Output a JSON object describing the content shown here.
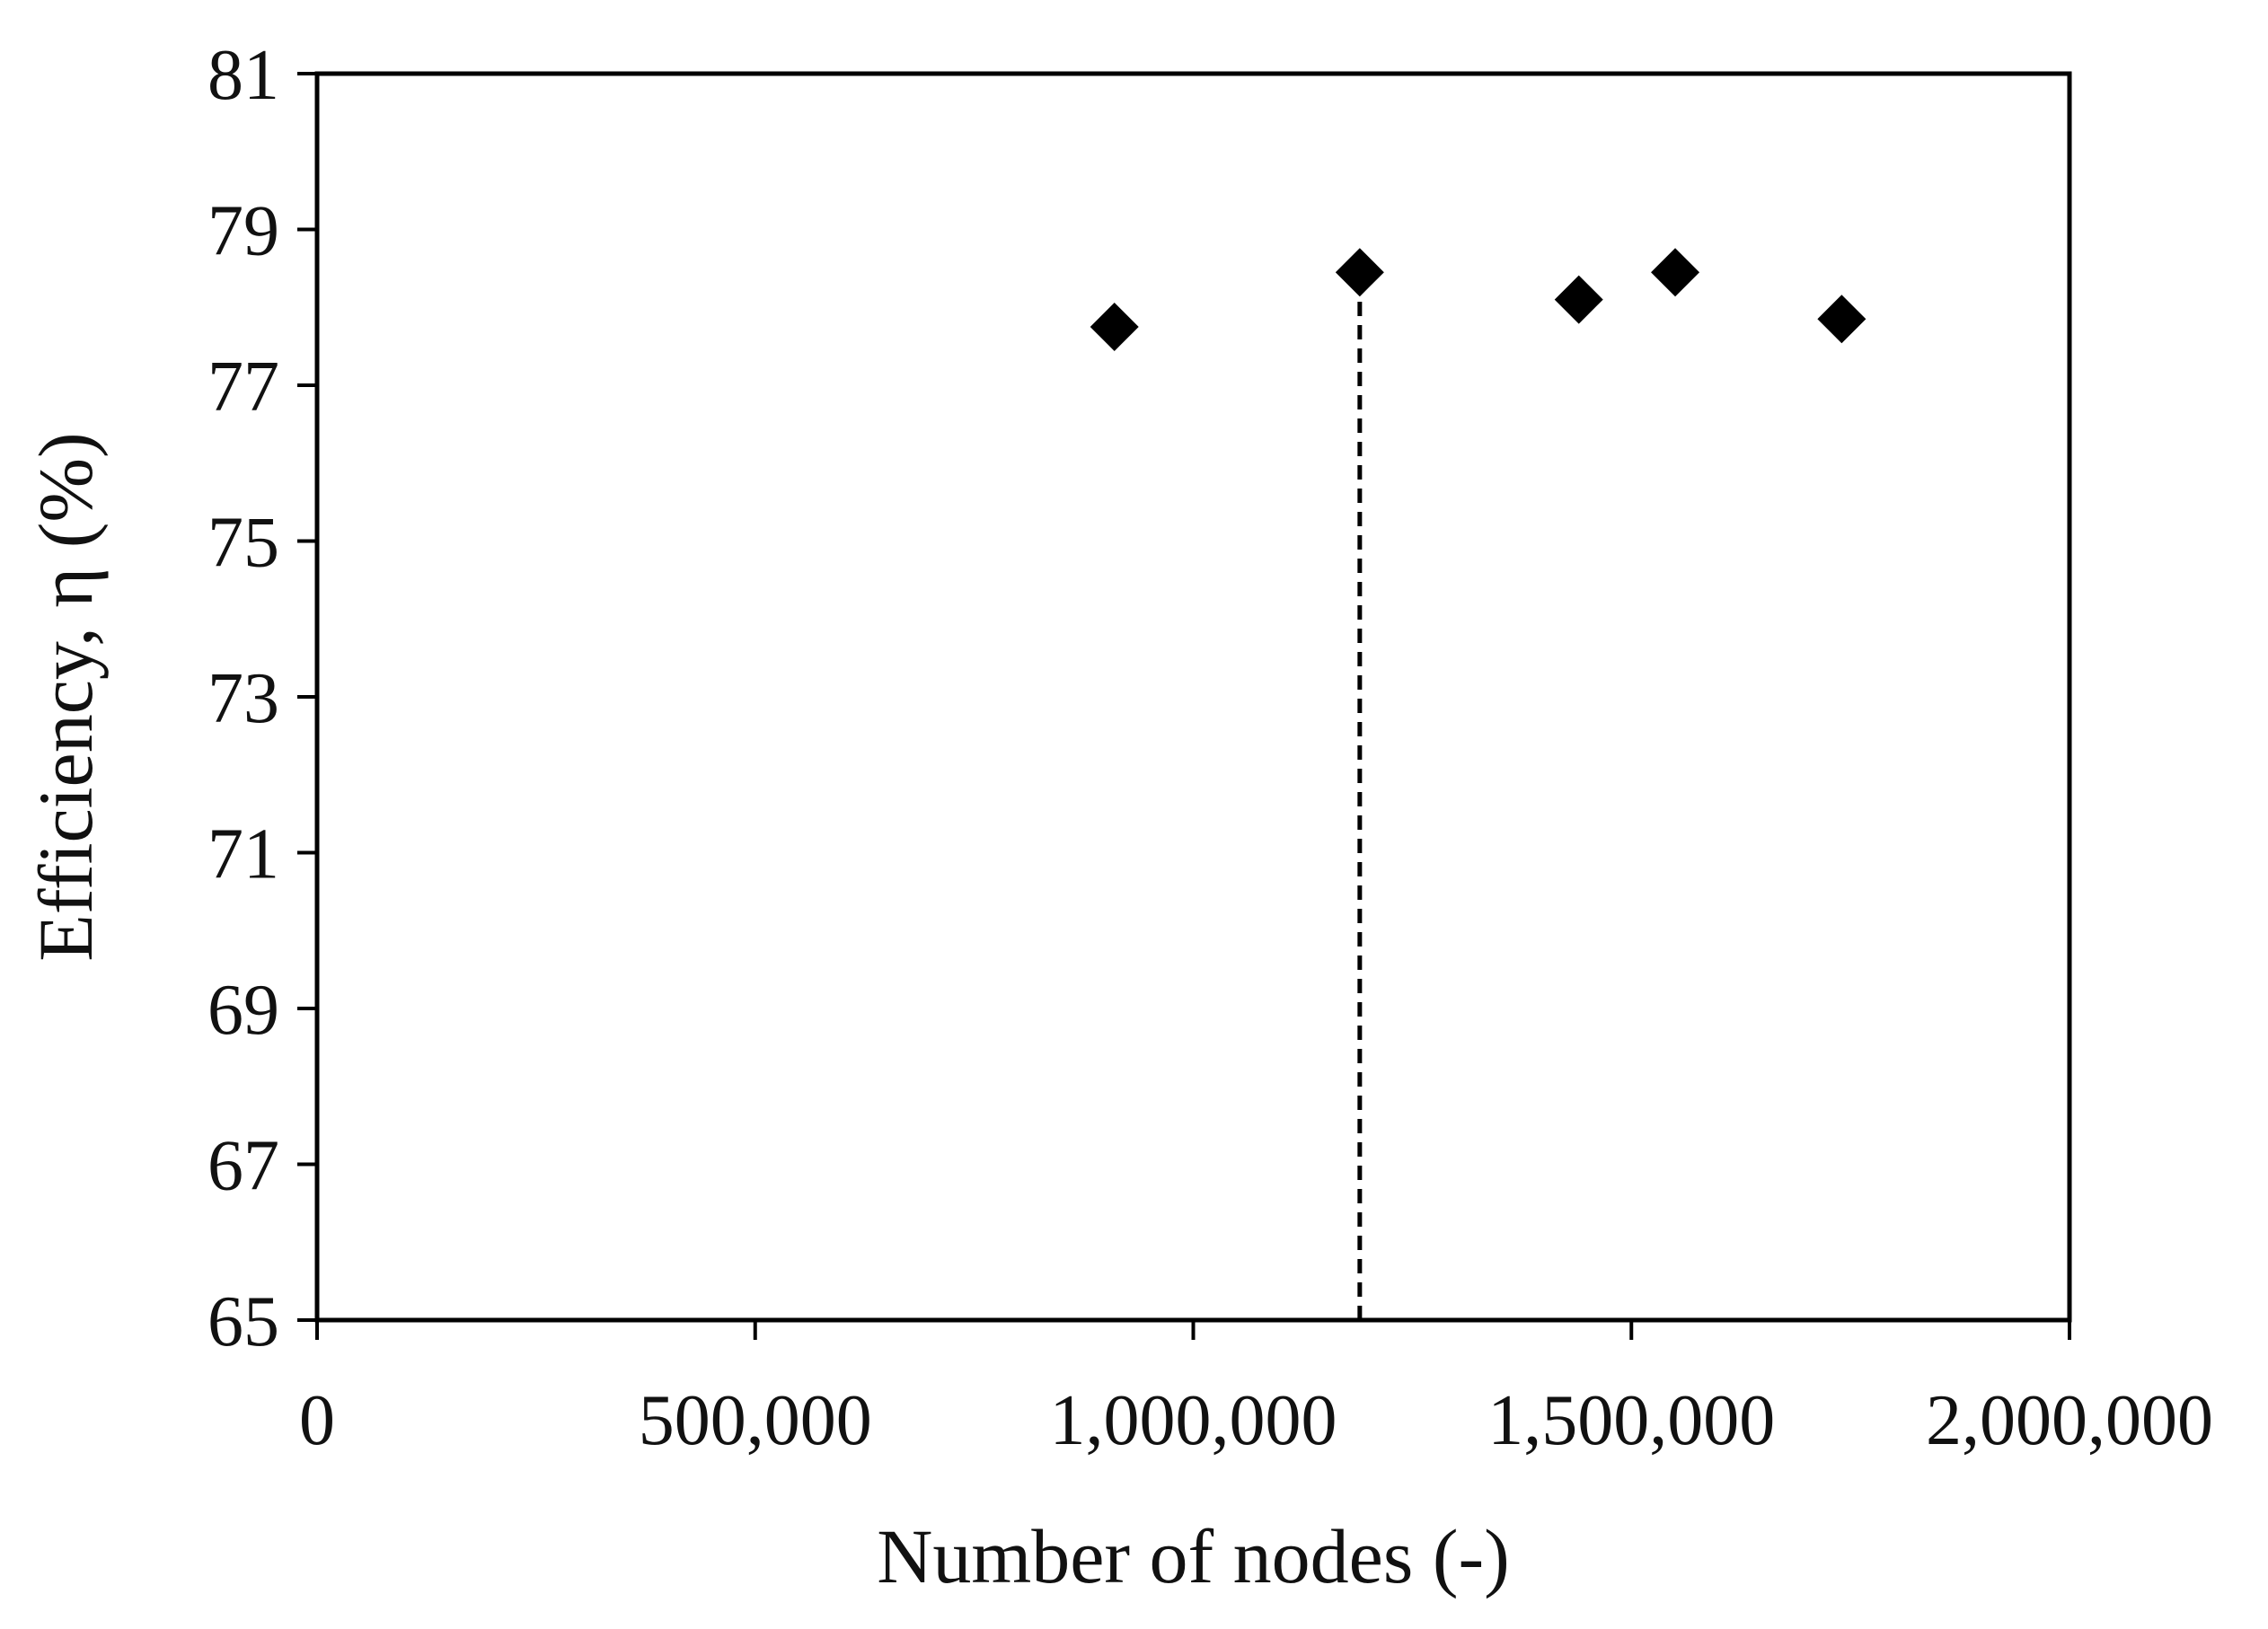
{
  "chart_data": {
    "type": "scatter",
    "title": "",
    "xlabel": "Number of nodes (-)",
    "ylabel": "Efficiency, η (%)",
    "xlim": [
      0,
      2000000
    ],
    "ylim": [
      65,
      81
    ],
    "x_ticks": [
      0,
      500000,
      1000000,
      1500000,
      2000000
    ],
    "x_tick_labels": [
      "0",
      "500,000",
      "1,000,000",
      "1,500,000",
      "2,000,000"
    ],
    "y_ticks": [
      65,
      67,
      69,
      71,
      73,
      75,
      77,
      79,
      81
    ],
    "y_tick_labels": [
      "65",
      "67",
      "69",
      "71",
      "73",
      "75",
      "77",
      "79",
      "81"
    ],
    "grid": false,
    "legend": "none",
    "marker": "diamond",
    "marker_color": "#000000",
    "series": [
      {
        "x": [
          910000,
          1190000,
          1440000,
          1550000,
          1740000
        ],
        "y": [
          77.75,
          78.45,
          78.1,
          78.45,
          77.85
        ]
      }
    ],
    "annotations": [
      {
        "type": "vertical-dashed-line",
        "x": 1190000,
        "y_from": 65,
        "y_to": 78.45
      }
    ]
  },
  "colors": {
    "axis": "#000000",
    "text": "#111111",
    "marker": "#000000"
  }
}
